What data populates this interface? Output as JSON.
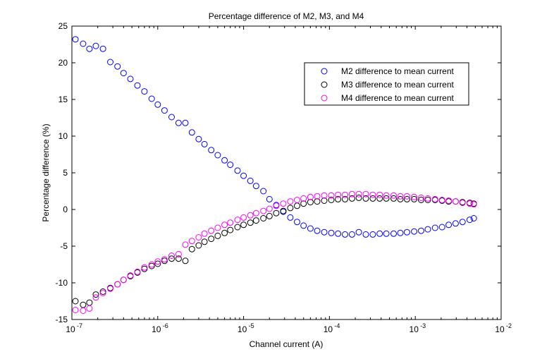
{
  "chart_data": {
    "type": "scatter",
    "title": "Percentage difference of M2, M3, and M4",
    "xlabel": "Channel current (A)",
    "ylabel": "Percentage difference (%)",
    "xscale": "log",
    "xlim": [
      1e-07,
      0.01
    ],
    "ylim": [
      -15,
      25
    ],
    "x_ticks": [
      {
        "value": 1e-07,
        "base": "10",
        "exp": "-7"
      },
      {
        "value": 1e-06,
        "base": "10",
        "exp": "-6"
      },
      {
        "value": 1e-05,
        "base": "10",
        "exp": "-5"
      },
      {
        "value": 0.0001,
        "base": "10",
        "exp": "-4"
      },
      {
        "value": 0.001,
        "base": "10",
        "exp": "-3"
      },
      {
        "value": 0.01,
        "base": "10",
        "exp": "-2"
      }
    ],
    "y_ticks": [
      25,
      20,
      15,
      10,
      5,
      0,
      -5,
      -10,
      -15
    ],
    "y_tick_labels": [
      "25",
      "20",
      "15",
      "10",
      "5",
      "0",
      "-5",
      "-10",
      "-15"
    ],
    "grid": false,
    "legend_position": "top-right",
    "marker": "open-circle",
    "series": [
      {
        "name": "M2 difference to mean current",
        "color": "#0000ff",
        "x": [
          1.1e-07,
          1.35e-07,
          1.6e-07,
          1.9e-07,
          2.3e-07,
          2.8e-07,
          3.4e-07,
          4e-07,
          4.8e-07,
          5.8e-07,
          7e-07,
          8.5e-07,
          1e-06,
          1.2e-06,
          1.45e-06,
          1.75e-06,
          2.1e-06,
          2.5e-06,
          3e-06,
          3.5e-06,
          4.2e-06,
          5e-06,
          6e-06,
          7e-06,
          8.5e-06,
          1e-05,
          1.2e-05,
          1.4e-05,
          1.7e-05,
          2e-05,
          2.4e-05,
          2.9e-05,
          3.5e-05,
          4.2e-05,
          5e-05,
          6e-05,
          7.2e-05,
          8.7e-05,
          0.000105,
          0.000126,
          0.000152,
          0.000183,
          0.00022,
          0.000265,
          0.00032,
          0.000385,
          0.00046,
          0.00056,
          0.00067,
          0.0008,
          0.00097,
          0.00117,
          0.0014,
          0.0017,
          0.00205,
          0.00245,
          0.00295,
          0.00355,
          0.0043,
          0.0048
        ],
        "y": [
          23.2,
          22.6,
          21.9,
          22.3,
          21.9,
          20.1,
          19.5,
          18.6,
          17.8,
          16.9,
          16.1,
          15.1,
          14.3,
          13.5,
          12.6,
          11.8,
          11.8,
          10.5,
          9.6,
          8.9,
          8.1,
          7.4,
          6.7,
          6.1,
          5.3,
          4.6,
          3.9,
          3.2,
          2.5,
          1.4,
          0.6,
          -0.3,
          -1.1,
          -1.7,
          -2.2,
          -2.6,
          -2.9,
          -3.1,
          -3.2,
          -3.3,
          -3.4,
          -3.4,
          -3.1,
          -3.4,
          -3.4,
          -3.3,
          -3.3,
          -3.3,
          -3.2,
          -3.1,
          -3,
          -2.9,
          -2.7,
          -2.5,
          -2.4,
          -2.1,
          -1.9,
          -1.7,
          -1.4,
          -1.2
        ]
      },
      {
        "name": "M3 difference to mean current",
        "color": "#000000",
        "x": [
          1.1e-07,
          1.35e-07,
          1.6e-07,
          1.9e-07,
          2.3e-07,
          2.8e-07,
          3.4e-07,
          4e-07,
          4.8e-07,
          5.8e-07,
          7e-07,
          8.5e-07,
          1e-06,
          1.2e-06,
          1.45e-06,
          1.75e-06,
          2.1e-06,
          2.5e-06,
          3e-06,
          3.5e-06,
          4.2e-06,
          5e-06,
          6e-06,
          7e-06,
          8.5e-06,
          1e-05,
          1.2e-05,
          1.4e-05,
          1.7e-05,
          2e-05,
          2.4e-05,
          2.9e-05,
          3.5e-05,
          4.2e-05,
          5e-05,
          6e-05,
          7.2e-05,
          8.7e-05,
          0.000105,
          0.000126,
          0.000152,
          0.000183,
          0.00022,
          0.000265,
          0.00032,
          0.000385,
          0.00046,
          0.00056,
          0.00067,
          0.0008,
          0.00097,
          0.00117,
          0.0014,
          0.0017,
          0.00205,
          0.00245,
          0.00295,
          0.00355,
          0.0043,
          0.0048
        ],
        "y": [
          -12.5,
          -13,
          -12.7,
          -11.6,
          -11.2,
          -10.7,
          -10.2,
          -9.6,
          -9.1,
          -8.6,
          -8.1,
          -7.7,
          -7.4,
          -7,
          -6.7,
          -6.7,
          -7,
          -5.4,
          -4.9,
          -4.4,
          -4,
          -3.6,
          -3.2,
          -2.8,
          -2.4,
          -2.1,
          -1.8,
          -1.5,
          -1.2,
          -0.9,
          -0.5,
          -0.2,
          0.2,
          0.5,
          0.8,
          1,
          1.1,
          1.2,
          1.3,
          1.4,
          1.4,
          1.5,
          1.6,
          1.5,
          1.5,
          1.5,
          1.5,
          1.5,
          1.4,
          1.4,
          1.4,
          1.3,
          1.3,
          1.3,
          1.2,
          1.1,
          1.1,
          1,
          0.9,
          0.8
        ]
      },
      {
        "name": "M4 difference to mean current",
        "color": "#ff00ff",
        "x": [
          1.1e-07,
          1.35e-07,
          1.6e-07,
          1.9e-07,
          2.3e-07,
          2.8e-07,
          3.4e-07,
          4e-07,
          4.8e-07,
          5.8e-07,
          7e-07,
          8.5e-07,
          1e-06,
          1.2e-06,
          1.45e-06,
          1.75e-06,
          2.1e-06,
          2.5e-06,
          3e-06,
          3.5e-06,
          4.2e-06,
          5e-06,
          6e-06,
          7e-06,
          8.5e-06,
          1e-05,
          1.2e-05,
          1.4e-05,
          1.7e-05,
          2e-05,
          2.4e-05,
          2.9e-05,
          3.5e-05,
          4.2e-05,
          5e-05,
          6e-05,
          7.2e-05,
          8.7e-05,
          0.000105,
          0.000126,
          0.000152,
          0.000183,
          0.00022,
          0.000265,
          0.00032,
          0.000385,
          0.00046,
          0.00056,
          0.00067,
          0.0008,
          0.00097,
          0.00117,
          0.0014,
          0.0017,
          0.00205,
          0.00245,
          0.00295,
          0.00355,
          0.0043,
          0.0048
        ],
        "y": [
          -13.7,
          -13.8,
          -13.5,
          -12,
          -11.4,
          -10.8,
          -10.2,
          -9.6,
          -9,
          -8.5,
          -7.9,
          -7.5,
          -7.1,
          -6.8,
          -6.3,
          -6.1,
          -4.8,
          -4.3,
          -3.8,
          -3.3,
          -2.9,
          -2.5,
          -2.1,
          -1.8,
          -1.4,
          -1.1,
          -0.8,
          -0.5,
          -0.2,
          0.1,
          0.5,
          0.8,
          1.1,
          1.3,
          1.5,
          1.7,
          1.8,
          1.9,
          1.9,
          2,
          2,
          2.1,
          2.1,
          2.1,
          2,
          2,
          1.9,
          1.9,
          1.8,
          1.8,
          1.7,
          1.6,
          1.5,
          1.4,
          1.3,
          1.2,
          1.1,
          0.9,
          0.8,
          0.7
        ]
      }
    ]
  }
}
